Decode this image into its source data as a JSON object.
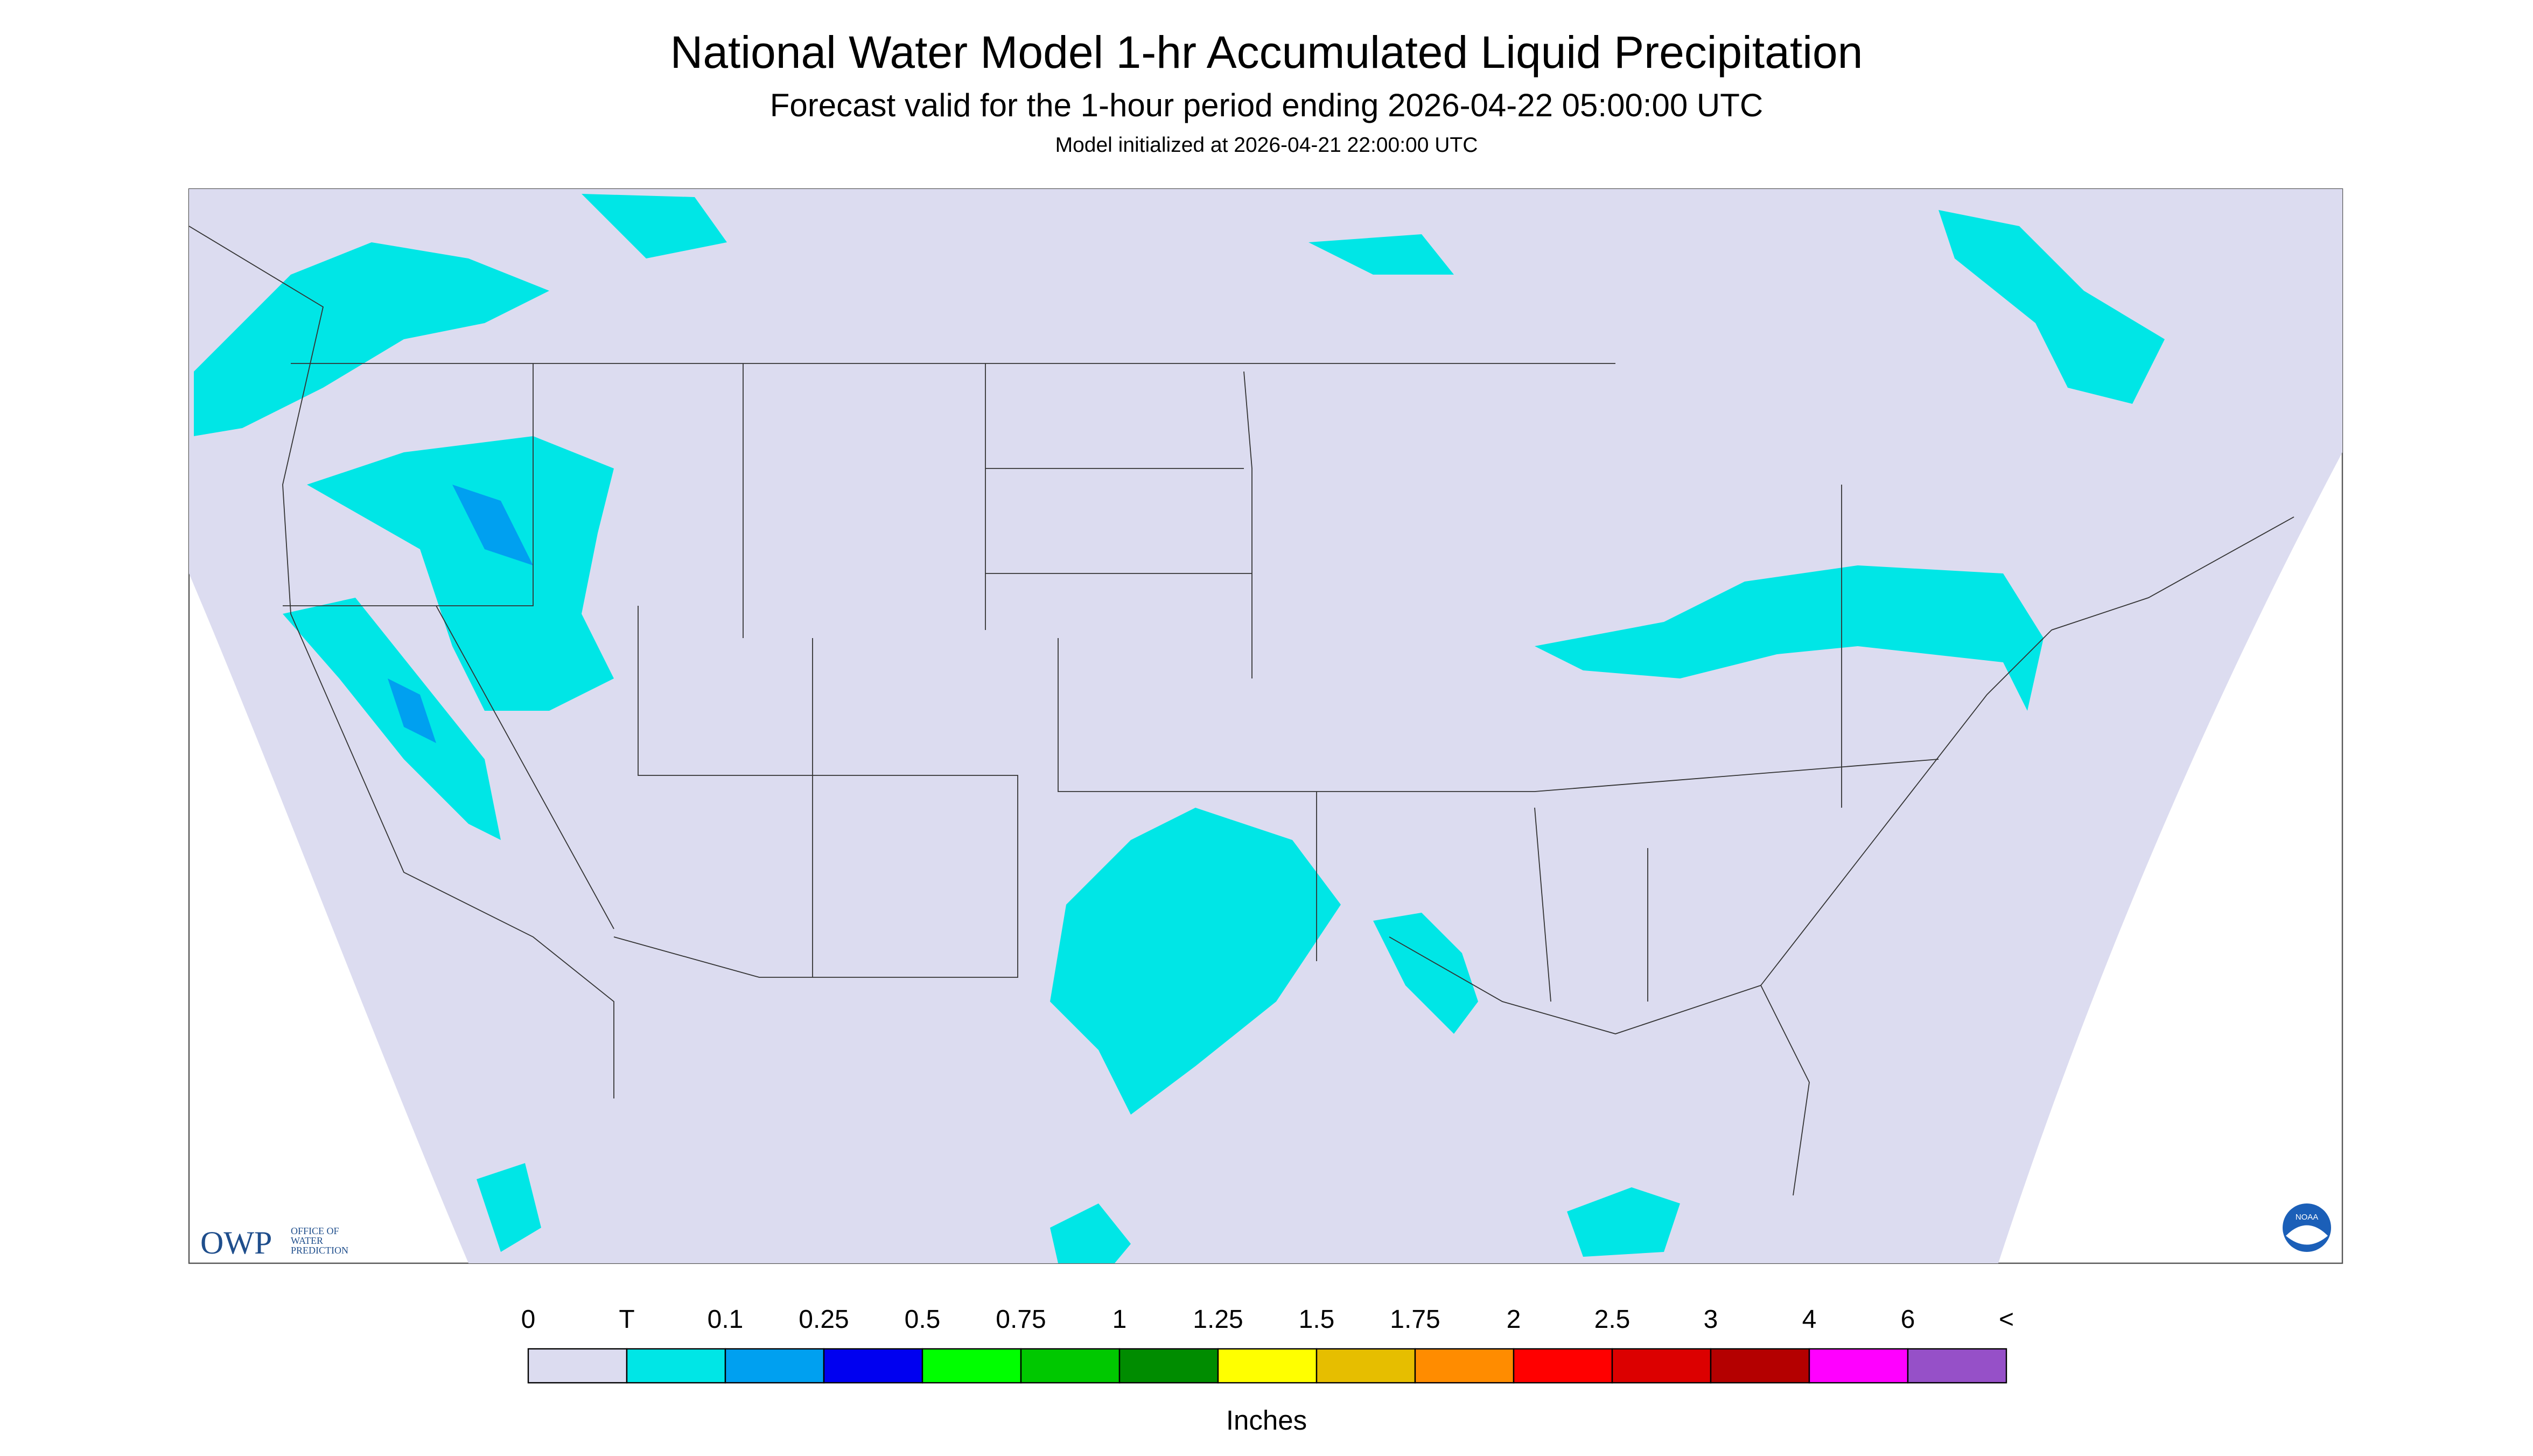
{
  "header": {
    "title": "National Water Model 1-hr Accumulated Liquid Precipitation",
    "subtitle": "Forecast valid for the 1-hour period ending 2026-04-22 05:00:00 UTC",
    "init": "Model initialized at 2026-04-21 22:00:00 UTC"
  },
  "logos": {
    "owp": "OWP",
    "owp_text": [
      "OFFICE OF",
      "WATER",
      "PREDICTION"
    ],
    "noaa": "NOAA"
  },
  "legend": {
    "labels": [
      "0",
      "T",
      "0.1",
      "0.25",
      "0.5",
      "0.75",
      "1",
      "1.25",
      "1.5",
      "1.75",
      "2",
      "2.5",
      "3",
      "4",
      "6",
      "<"
    ],
    "colors": [
      "#dcdcf0",
      "#00e6e6",
      "#00a0f0",
      "#0000f0",
      "#00ff00",
      "#00c800",
      "#008c00",
      "#ffff00",
      "#e6be00",
      "#ff8c00",
      "#ff0000",
      "#dc0000",
      "#b40000",
      "#ff00ff",
      "#9650c8"
    ],
    "unit": "Inches"
  }
}
